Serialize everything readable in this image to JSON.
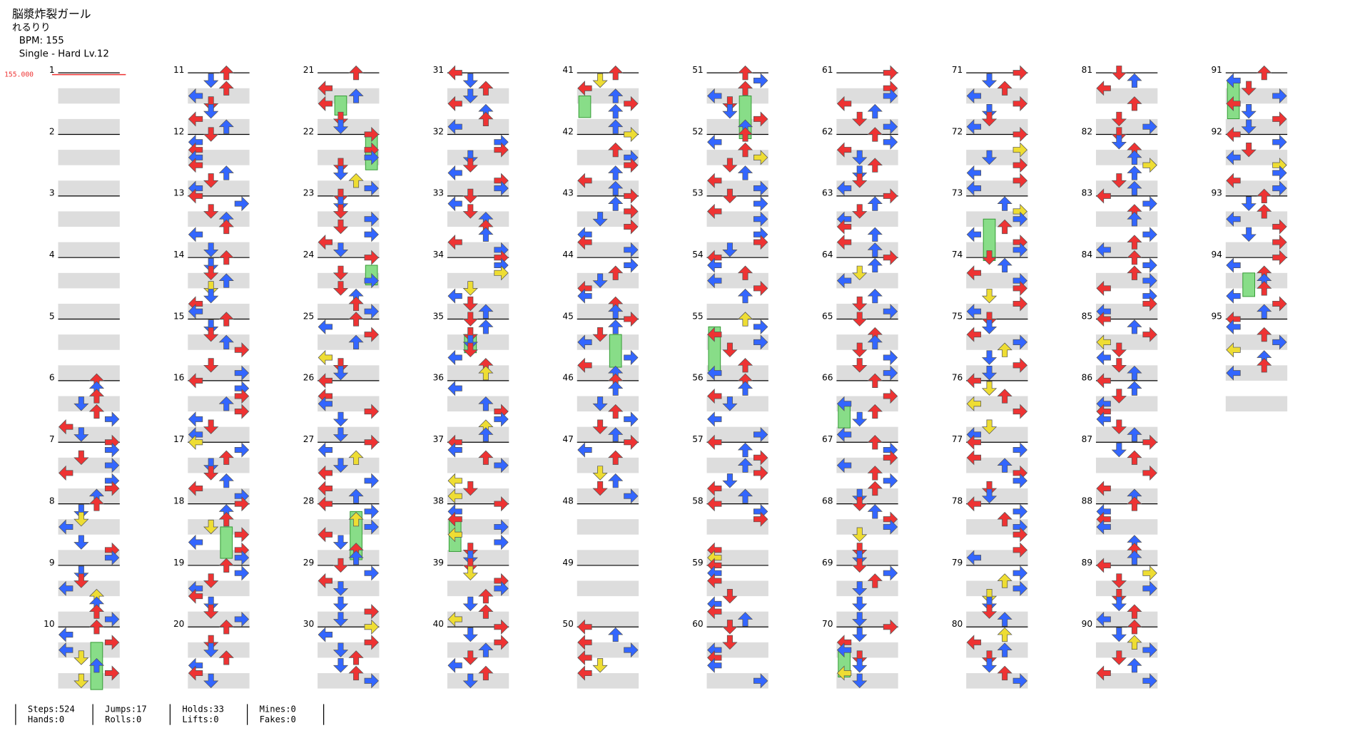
{
  "header": {
    "title": "脳漿炸裂ガール",
    "artist": "れるりり",
    "bpm": "BPM: 155",
    "difficulty": "Single - Hard  Lv.12"
  },
  "bpm_marker": "155.000",
  "measures": [
    "1",
    "2",
    "3",
    "4",
    "5",
    "6",
    "7",
    "8",
    "9",
    "10",
    "11",
    "12",
    "13",
    "14",
    "15",
    "16",
    "17",
    "18",
    "19",
    "20",
    "21",
    "22",
    "23",
    "24",
    "25",
    "26",
    "27",
    "28",
    "29",
    "30",
    "31",
    "32",
    "33",
    "34",
    "35",
    "36",
    "37",
    "38",
    "39",
    "40",
    "41",
    "42",
    "43",
    "44",
    "45",
    "46",
    "47",
    "48",
    "49",
    "50",
    "51",
    "52",
    "53",
    "54",
    "55",
    "56",
    "57",
    "58",
    "59",
    "60",
    "61",
    "62",
    "63",
    "64",
    "65",
    "66",
    "67",
    "68",
    "69",
    "70",
    "71",
    "72",
    "73",
    "74",
    "75",
    "76",
    "77",
    "78",
    "79",
    "80",
    "81",
    "82",
    "83",
    "84",
    "85",
    "86",
    "87",
    "88",
    "89",
    "90",
    "91",
    "92",
    "93",
    "94",
    "95"
  ],
  "stats": [
    [
      "Steps:524",
      "Hands:0"
    ],
    [
      "Jumps:17",
      "Rolls:0"
    ],
    [
      "Holds:33",
      "Lifts:0"
    ],
    [
      "Mines:0",
      "Fakes:0"
    ]
  ]
}
